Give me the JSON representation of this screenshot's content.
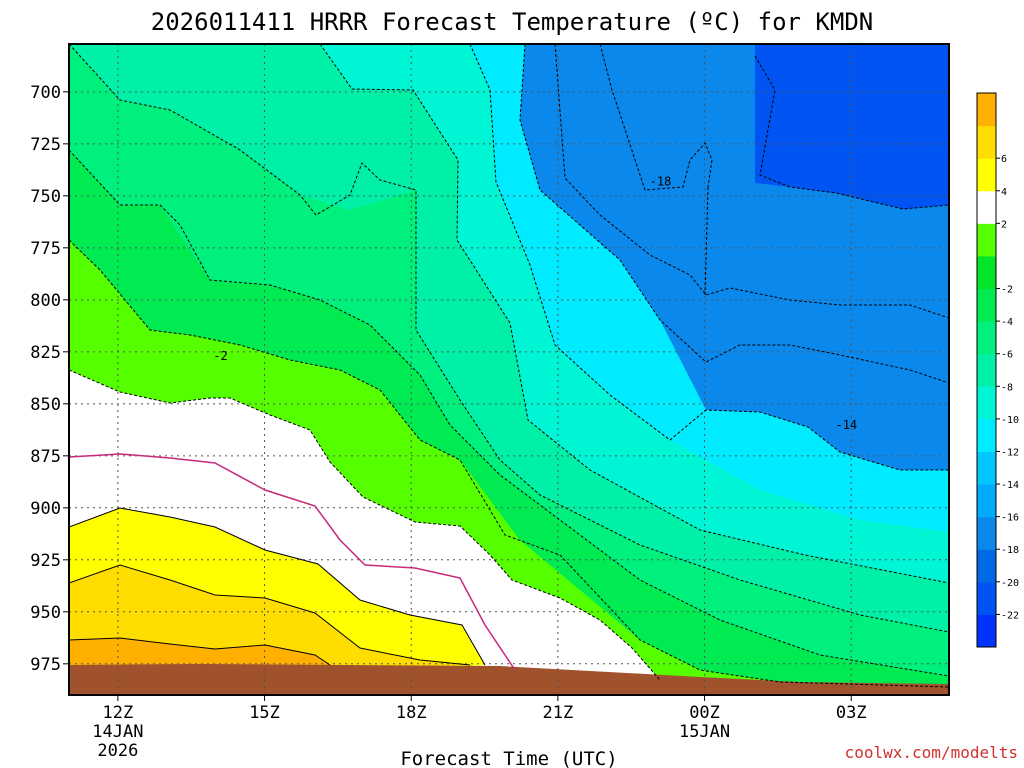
{
  "chart_data": {
    "type": "contour",
    "title": "2026011411 HRRR Forecast Temperature (ºC) for KMDN",
    "xlabel": "Forecast Time (UTC)",
    "ylabel": "",
    "x_ticks": [
      {
        "hour": 12,
        "label": "12Z",
        "sub1": "14JAN",
        "sub2": "2026"
      },
      {
        "hour": 15,
        "label": "15Z",
        "sub1": "",
        "sub2": ""
      },
      {
        "hour": 18,
        "label": "18Z",
        "sub1": "",
        "sub2": ""
      },
      {
        "hour": 21,
        "label": "21Z",
        "sub1": "",
        "sub2": ""
      },
      {
        "hour": 24,
        "label": "00Z",
        "sub1": "15JAN",
        "sub2": ""
      },
      {
        "hour": 27,
        "label": "03Z",
        "sub1": "",
        "sub2": ""
      }
    ],
    "y_ticks": [
      700,
      725,
      750,
      775,
      800,
      825,
      850,
      875,
      900,
      925,
      950,
      975
    ],
    "y_unit": "hPa",
    "x_range_hours": [
      11,
      29
    ],
    "y_range_hPa": [
      677,
      990
    ],
    "contour_interval_C": 2,
    "contour_labels": [
      {
        "text": "-2",
        "hour": 14.1,
        "p": 829
      },
      {
        "text": "-18",
        "hour": 23.1,
        "p": 745
      },
      {
        "text": "-14",
        "hour": 26.9,
        "p": 862
      }
    ],
    "colorbar": {
      "colors": [
        "#0033ff",
        "#0055f2",
        "#006ae6",
        "#0a88ec",
        "#00aaff",
        "#00c8ff",
        "#00ebff",
        "#00f5d5",
        "#00f0a8",
        "#00f07e",
        "#00ea52",
        "#00e626",
        "#55ff00",
        "#ffffff",
        "#ffff00",
        "#ffdd00",
        "#ffb000"
      ],
      "labels": [
        "-22",
        "-20",
        "-18",
        "-16",
        "-14",
        "-12",
        "-10",
        "-8",
        "-6",
        "-4",
        "-2",
        "2",
        "4",
        "6"
      ]
    },
    "credit": "coolwx.com/modelts"
  }
}
